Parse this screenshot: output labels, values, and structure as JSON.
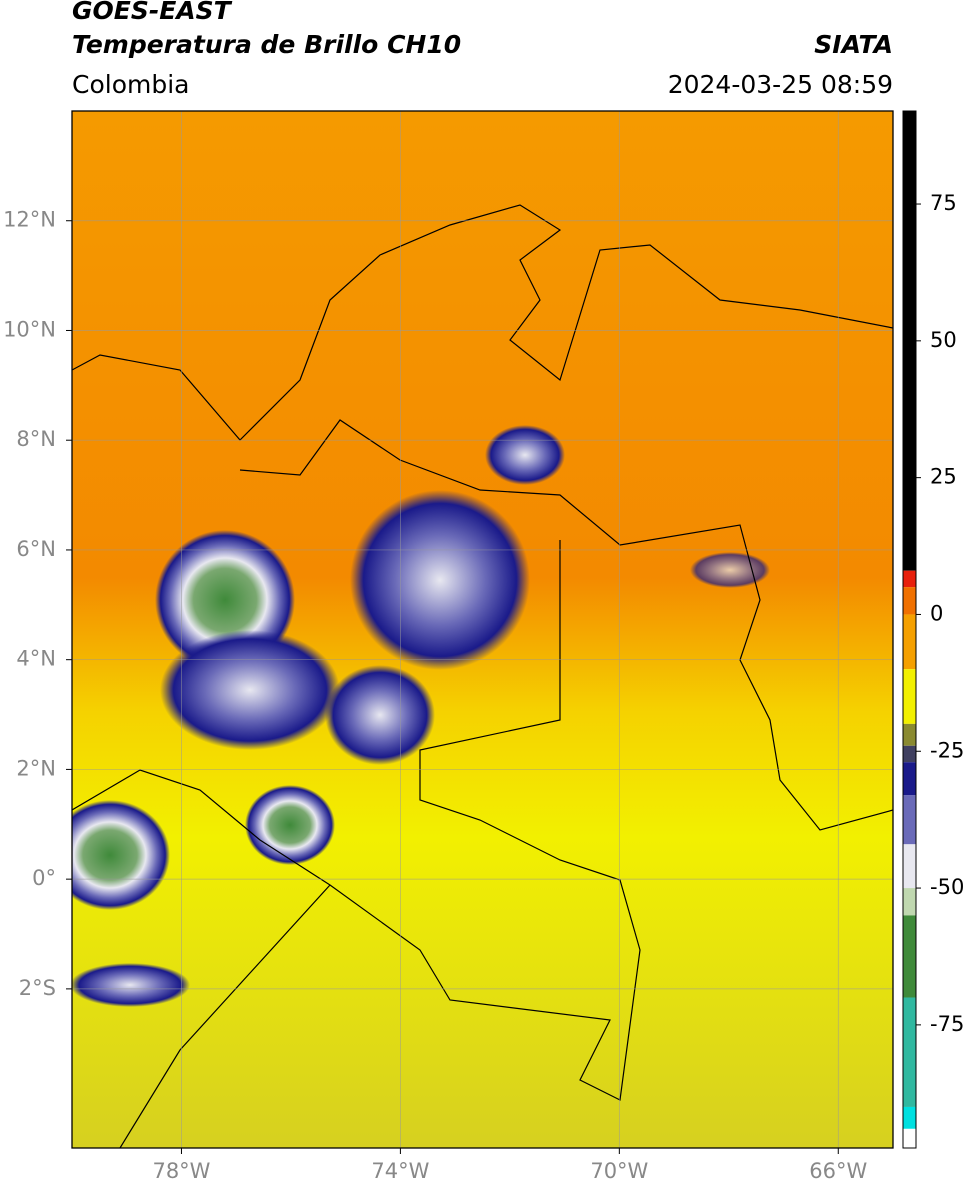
{
  "header": {
    "title": "GOES-EAST",
    "subtitle": "Temperatura de Brillo CH10",
    "region": "Colombia",
    "source": "SIATA",
    "datetime": "2024-03-25 08:59"
  },
  "map": {
    "lonlim": [
      -80,
      -65
    ],
    "latlim": [
      -4.9,
      14
    ],
    "lonticks": [
      {
        "value": -78,
        "label": "78°W"
      },
      {
        "value": -74,
        "label": "74°W"
      },
      {
        "value": -70,
        "label": "70°W"
      },
      {
        "value": -66,
        "label": "66°W"
      }
    ],
    "latticks": [
      {
        "value": 12,
        "label": "12°N"
      },
      {
        "value": 10,
        "label": "10°N"
      },
      {
        "value": 8,
        "label": "8°N"
      },
      {
        "value": 6,
        "label": "6°N"
      },
      {
        "value": 4,
        "label": "4°N"
      },
      {
        "value": 2,
        "label": "2°N"
      },
      {
        "value": 0,
        "label": "0°"
      },
      {
        "value": -2,
        "label": "2°S"
      }
    ],
    "grid": true
  },
  "colorbar": {
    "clim": [
      -97.5,
      92
    ],
    "ticks": [
      75,
      50,
      25,
      0,
      -25,
      -50,
      -75
    ],
    "segments": [
      {
        "from": 8,
        "to": 92,
        "color": "#000000"
      },
      {
        "from": 5,
        "to": 8,
        "color": "#e8200c"
      },
      {
        "from": 0,
        "to": 5,
        "color": "#f07000"
      },
      {
        "from": -10,
        "to": 0,
        "color": "#f5a000"
      },
      {
        "from": -20,
        "to": -10,
        "color": "#f2f000"
      },
      {
        "from": -24,
        "to": -20,
        "color": "#8a8a30"
      },
      {
        "from": -27,
        "to": -24,
        "color": "#404060"
      },
      {
        "from": -33,
        "to": -27,
        "color": "#1a1a8a"
      },
      {
        "from": -42,
        "to": -33,
        "color": "#6a6ab8"
      },
      {
        "from": -50,
        "to": -42,
        "color": "#e8e8f0"
      },
      {
        "from": -55,
        "to": -50,
        "color": "#c0d8b0"
      },
      {
        "from": -70,
        "to": -55,
        "color": "#3f8a3a"
      },
      {
        "from": -90,
        "to": -70,
        "color": "#30b8a0"
      },
      {
        "from": -94,
        "to": -90,
        "color": "#00e0e0"
      },
      {
        "from": -97.5,
        "to": -94,
        "color": "#ffffff"
      }
    ]
  }
}
